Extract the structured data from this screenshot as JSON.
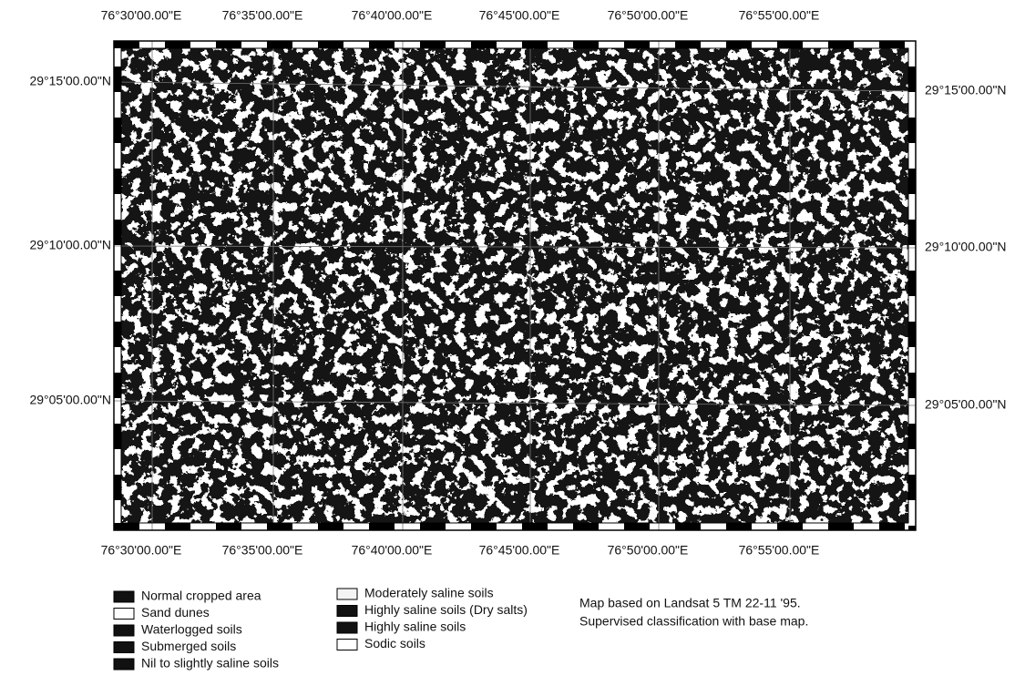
{
  "map": {
    "top_longitudes": [
      "76°30'00.00\"E",
      "76°35'00.00\"E",
      "76°40'00.00\"E",
      "76°45'00.00\"E",
      "76°50'00.00\"E",
      "76°55'00.00\"E"
    ],
    "bottom_longitudes": [
      "76°30'00.00\"E",
      "76°35'00.00\"E",
      "76°40'00.00\"E",
      "76°45'00.00\"E",
      "76°50'00.00\"E",
      "76°55'00.00\"E"
    ],
    "left_latitudes": [
      "29°15'00.00\"N",
      "29°10'00.00\"N",
      "29°05'00.00\"N"
    ],
    "right_latitudes": [
      "29°15'00.00\"N",
      "29°10'00.00\"N",
      "29°05'00.00\"N"
    ]
  },
  "legend": {
    "items": [
      {
        "label": "Normal cropped area",
        "fill": "#111111"
      },
      {
        "label": "Sand dunes",
        "fill": "#ffffff"
      },
      {
        "label": "Waterlogged soils",
        "fill": "#111111"
      },
      {
        "label": "Submerged soils",
        "fill": "#111111"
      },
      {
        "label": "Nil to slightly saline soils",
        "fill": "#111111"
      },
      {
        "label": "Moderately saline soils",
        "fill": "#f4f4f4"
      },
      {
        "label": "Highly saline soils (Dry salts)",
        "fill": "#111111"
      },
      {
        "label": "Highly saline soils",
        "fill": "#111111"
      },
      {
        "label": "Sodic soils",
        "fill": "#ffffff"
      }
    ]
  },
  "note": [
    "Map based on Landsat 5 TM 22-11 '95.",
    "Supervised classification with base map."
  ]
}
